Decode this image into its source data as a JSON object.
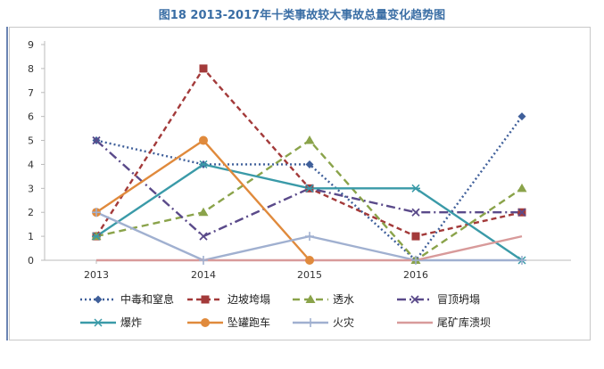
{
  "chart_data": {
    "type": "line",
    "title": "图18  2013-2017年十类事故较大事故总量变化趋势图",
    "xlabel": "",
    "ylabel": "",
    "x_tick_labels": [
      "2013",
      "2014",
      "2015",
      "2016",
      ""
    ],
    "ylim": [
      0,
      9
    ],
    "y_ticks": [
      0,
      1,
      2,
      3,
      4,
      5,
      6,
      7,
      8,
      9
    ],
    "grid": false,
    "legend_position": "bottom",
    "series": [
      {
        "name": "中毒和窒息",
        "values": [
          5,
          4,
          4,
          0,
          6
        ],
        "color": "#3f5f9a",
        "dash": "2,3",
        "marker": "diamond"
      },
      {
        "name": "边坡垮塌",
        "values": [
          1,
          8,
          3,
          1,
          2
        ],
        "color": "#a33a3a",
        "dash": "6,4",
        "marker": "square"
      },
      {
        "name": "透水",
        "values": [
          1,
          2,
          5,
          0,
          3
        ],
        "color": "#8aa34a",
        "dash": "8,5",
        "marker": "triangle"
      },
      {
        "name": "冒顶坍塌",
        "values": [
          5,
          1,
          3,
          2,
          2
        ],
        "color": "#5a4a8a",
        "dash": "10,4,2,4",
        "marker": "x"
      },
      {
        "name": "爆炸",
        "values": [
          1,
          4,
          3,
          3,
          0
        ],
        "color": "#3a9aa8",
        "dash": "",
        "marker": "asterisk"
      },
      {
        "name": "坠罐跑车",
        "values": [
          2,
          5,
          0,
          null,
          null
        ],
        "color": "#e08a3c",
        "dash": "",
        "marker": "circle"
      },
      {
        "name": "火灾",
        "values": [
          2,
          0,
          1,
          0,
          0
        ],
        "color": "#a0b0d0",
        "dash": "",
        "marker": "plus"
      },
      {
        "name": "尾矿库溃坝",
        "values": [
          0,
          0,
          0,
          0,
          1
        ],
        "color": "#d89a9a",
        "dash": "",
        "marker": "none"
      }
    ]
  }
}
